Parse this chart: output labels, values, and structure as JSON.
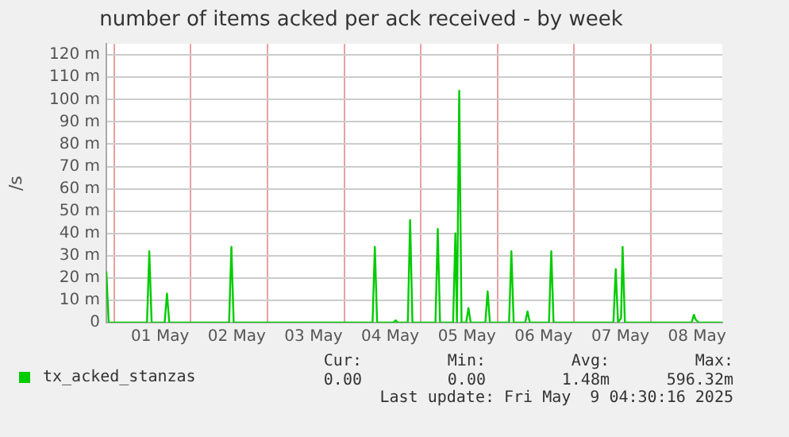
{
  "chart_data": {
    "type": "line",
    "title": "number of items acked per ack received - by week",
    "ylabel": "/s",
    "x": [
      "2025-04-30T21:36",
      "2025-04-30T22:19",
      "2025-05-01T10:19",
      "2025-05-01T11:02",
      "2025-05-01T11:46",
      "2025-05-01T15:50",
      "2025-05-01T16:34",
      "2025-05-01T17:17",
      "2025-05-02T12:00",
      "2025-05-02T12:43",
      "2025-05-02T13:26",
      "2025-05-04T08:53",
      "2025-05-04T09:36",
      "2025-05-04T10:19",
      "2025-05-04T15:22",
      "2025-05-04T16:05",
      "2025-05-04T16:48",
      "2025-05-04T19:55",
      "2025-05-04T20:38",
      "2025-05-04T21:22",
      "2025-05-05T04:34",
      "2025-05-05T05:17",
      "2025-05-05T06:00",
      "2025-05-05T10:05",
      "2025-05-05T10:48",
      "2025-05-05T11:17",
      "2025-05-05T12:00",
      "2025-05-05T12:43",
      "2025-05-05T14:10",
      "2025-05-05T14:53",
      "2025-05-05T15:36",
      "2025-05-05T20:10",
      "2025-05-05T20:53",
      "2025-05-05T21:36",
      "2025-05-06T03:36",
      "2025-05-06T04:19",
      "2025-05-06T05:02",
      "2025-05-06T08:38",
      "2025-05-06T09:22",
      "2025-05-06T10:05",
      "2025-05-06T16:05",
      "2025-05-06T16:48",
      "2025-05-06T17:31",
      "2025-05-07T12:14",
      "2025-05-07T12:58",
      "2025-05-07T13:41",
      "2025-05-07T14:38",
      "2025-05-07T15:07",
      "2025-05-07T15:50",
      "2025-05-08T12:43",
      "2025-05-08T13:26",
      "2025-05-08T13:55",
      "2025-05-08T14:53",
      "2025-05-08T22:19"
    ],
    "series": [
      {
        "name": "tx_acked_stanzas",
        "color": "#00cc00",
        "values": [
          23,
          0,
          0,
          32,
          0,
          0,
          13,
          0,
          0,
          34,
          0,
          0,
          34,
          0,
          0,
          1,
          0,
          0,
          46,
          0,
          0,
          42,
          0,
          0,
          40,
          0,
          104,
          0,
          0,
          6.5,
          0,
          0,
          14,
          0,
          0,
          32,
          0,
          0,
          5,
          0,
          0,
          32,
          0,
          0,
          24,
          0,
          2,
          34,
          0,
          0,
          3.5,
          1.5,
          0,
          0
        ]
      }
    ],
    "xlim": [
      "2025-04-30T21:36",
      "2025-05-08T22:19"
    ],
    "xticks": [
      {
        "value": "2025-05-01T00:00",
        "label": null
      },
      {
        "value": "2025-05-01T14:24",
        "label": "01 May"
      },
      {
        "value": "2025-05-02T00:00",
        "label": null
      },
      {
        "value": "2025-05-02T14:24",
        "label": "02 May"
      },
      {
        "value": "2025-05-03T00:00",
        "label": null
      },
      {
        "value": "2025-05-03T14:24",
        "label": "03 May"
      },
      {
        "value": "2025-05-04T00:00",
        "label": null
      },
      {
        "value": "2025-05-04T14:24",
        "label": "04 May"
      },
      {
        "value": "2025-05-05T00:00",
        "label": null
      },
      {
        "value": "2025-05-05T14:24",
        "label": "05 May"
      },
      {
        "value": "2025-05-06T00:00",
        "label": null
      },
      {
        "value": "2025-05-06T14:24",
        "label": "06 May"
      },
      {
        "value": "2025-05-07T00:00",
        "label": null
      },
      {
        "value": "2025-05-07T14:24",
        "label": "07 May"
      },
      {
        "value": "2025-05-08T00:00",
        "label": null
      },
      {
        "value": "2025-05-08T14:24",
        "label": "08 May"
      }
    ],
    "ylim": [
      0,
      125
    ],
    "yticks": [
      0,
      {
        "value": 10,
        "label": "10 m"
      },
      {
        "value": 20,
        "label": "20 m"
      },
      {
        "value": 30,
        "label": "30 m"
      },
      {
        "value": 40,
        "label": "40 m"
      },
      {
        "value": 50,
        "label": "50 m"
      },
      {
        "value": 60,
        "label": "60 m"
      },
      {
        "value": 70,
        "label": "70 m"
      },
      {
        "value": 80,
        "label": "80 m"
      },
      {
        "value": 90,
        "label": "90 m"
      },
      {
        "value": 100,
        "label": "100 m"
      },
      {
        "value": 110,
        "label": "110 m"
      },
      {
        "value": 120,
        "label": "120 m"
      }
    ],
    "grid": true,
    "legend": "bottom left",
    "marker": "none",
    "annotations": [
      "Cur:",
      "Min:",
      "Avg:",
      "Max:",
      "0.00",
      "0.00",
      "1.48m",
      "596.32m",
      "Last update: Fri May  9 04:30:16 2025"
    ]
  }
}
